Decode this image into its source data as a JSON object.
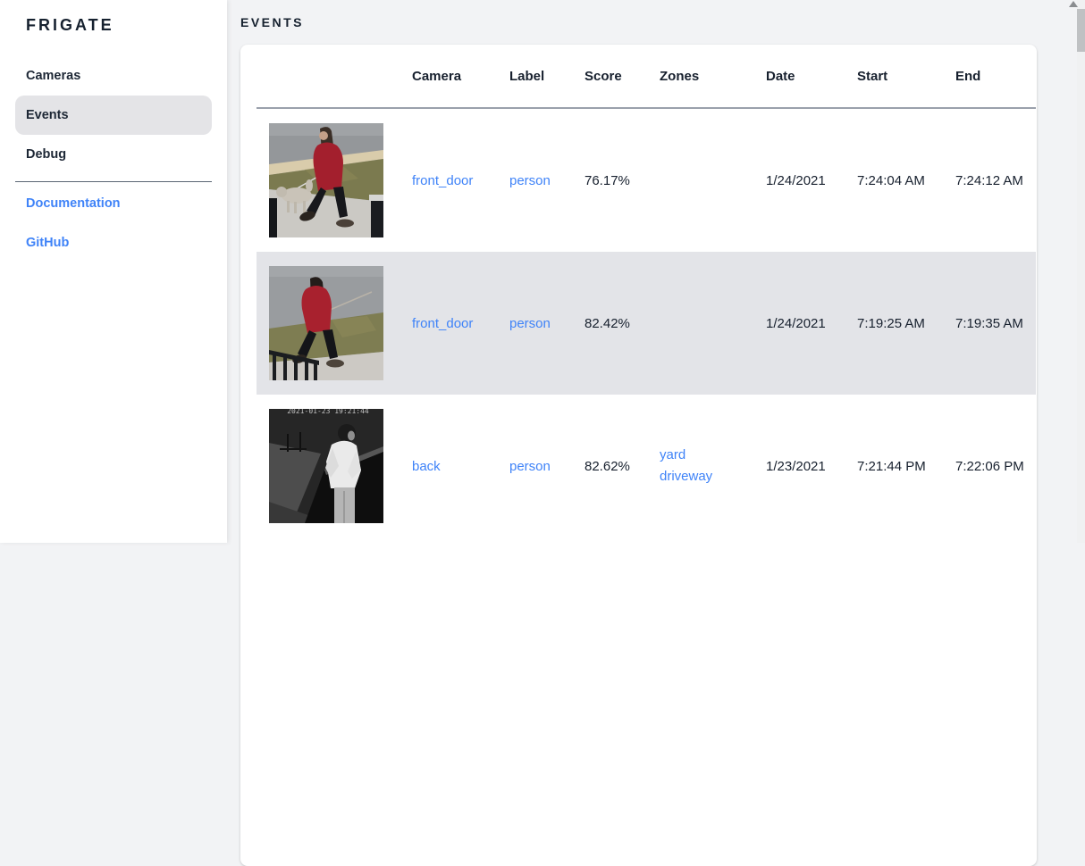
{
  "colors": {
    "accent_blue": "#3f83f8",
    "dark_text": "#17202e",
    "page_background": "#f2f3f5",
    "selected_row_background": "#e3e4e8",
    "selected_nav_background": "#e4e4e7"
  },
  "sidebar": {
    "logo": "FRIGATE",
    "items": [
      {
        "label": "Cameras",
        "selected": false
      },
      {
        "label": "Events",
        "selected": true
      },
      {
        "label": "Debug",
        "selected": false
      }
    ],
    "links": [
      {
        "label": "Documentation"
      },
      {
        "label": "GitHub"
      }
    ]
  },
  "page": {
    "title": "EVENTS"
  },
  "table": {
    "columns": [
      "Camera",
      "Label",
      "Score",
      "Zones",
      "Date",
      "Start",
      "End"
    ],
    "rows": [
      {
        "camera": "front_door",
        "label": "person",
        "score": "76.17%",
        "zones": [],
        "date": "1/24/2021",
        "start": "7:24:04 AM",
        "end": "7:24:12 AM",
        "selected": false,
        "thumb": "day-red-coat-dog",
        "thumb_alt": "person in red coat walking a dog past sidewalk"
      },
      {
        "camera": "front_door",
        "label": "person",
        "score": "82.42%",
        "zones": [],
        "date": "1/24/2021",
        "start": "7:19:25 AM",
        "end": "7:19:35 AM",
        "selected": true,
        "thumb": "day-red-hoodie",
        "thumb_alt": "person in red hoodie walking with leash near railing"
      },
      {
        "camera": "back",
        "label": "person",
        "score": "82.62%",
        "zones": [
          "yard",
          "driveway"
        ],
        "date": "1/23/2021",
        "start": "7:21:44 PM",
        "end": "7:22:06 PM",
        "selected": false,
        "thumb": "night-ir",
        "osd_text": "2021-01-23 19:21:44",
        "thumb_alt": "infrared night view of person in white shirt"
      }
    ]
  }
}
